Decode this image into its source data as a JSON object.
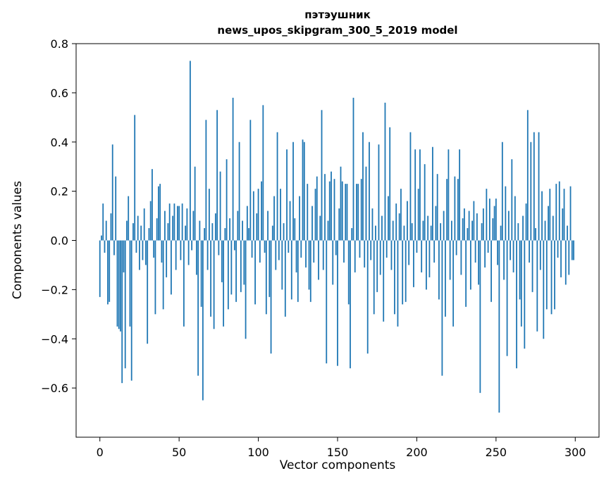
{
  "chart_data": {
    "type": "bar",
    "title_line1": "пэтэушник",
    "title_line2": "news_upos_skipgram_300_5_2019 model",
    "xlabel": "Vector components",
    "ylabel": "Components values",
    "xlim": [
      -15,
      315
    ],
    "ylim": [
      -0.8,
      0.8
    ],
    "bar_color": "#1f77b4",
    "grid": false,
    "legend": null,
    "xticks": [
      0,
      50,
      100,
      150,
      200,
      250,
      300
    ],
    "xticklabels": [
      "0",
      "50",
      "100",
      "150",
      "200",
      "250",
      "300"
    ],
    "yticks": [
      -0.6,
      -0.4,
      -0.2,
      0.0,
      0.2,
      0.4,
      0.6,
      0.8
    ],
    "yticklabels": [
      "−0.6",
      "−0.4",
      "−0.2",
      "0.0",
      "0.2",
      "0.4",
      "0.6",
      "0.8"
    ],
    "x_start": 0,
    "values": [
      -0.23,
      0.02,
      0.15,
      -0.05,
      0.08,
      -0.26,
      -0.25,
      0.11,
      0.39,
      -0.06,
      0.26,
      -0.35,
      -0.36,
      -0.37,
      -0.58,
      -0.13,
      -0.52,
      0.08,
      0.18,
      -0.35,
      -0.57,
      0.07,
      0.51,
      -0.05,
      0.1,
      -0.12,
      0.06,
      -0.08,
      0.13,
      -0.1,
      -0.42,
      0.05,
      0.16,
      0.29,
      -0.07,
      -0.3,
      0.09,
      0.22,
      0.23,
      -0.09,
      -0.28,
      0.12,
      -0.15,
      0.07,
      0.15,
      -0.22,
      0.1,
      0.15,
      -0.12,
      0.14,
      0.14,
      -0.08,
      0.15,
      -0.35,
      0.06,
      0.13,
      -0.1,
      0.73,
      -0.04,
      0.12,
      0.3,
      -0.14,
      -0.55,
      0.08,
      -0.27,
      -0.65,
      0.05,
      0.49,
      -0.12,
      0.21,
      -0.31,
      0.07,
      -0.36,
      0.11,
      0.53,
      -0.06,
      0.28,
      -0.17,
      -0.35,
      0.05,
      0.33,
      -0.28,
      0.09,
      -0.22,
      0.58,
      -0.04,
      -0.25,
      0.12,
      0.4,
      -0.21,
      0.08,
      -0.18,
      -0.4,
      0.14,
      0.05,
      0.49,
      -0.07,
      0.2,
      -0.26,
      0.11,
      0.21,
      -0.09,
      0.24,
      0.55,
      -0.05,
      -0.3,
      0.12,
      -0.23,
      -0.46,
      0.06,
      0.18,
      -0.12,
      0.44,
      -0.08,
      0.21,
      -0.2,
      0.07,
      -0.31,
      0.37,
      -0.05,
      0.16,
      -0.24,
      0.4,
      0.09,
      -0.13,
      -0.25,
      0.18,
      -0.07,
      0.41,
      0.4,
      -0.11,
      0.23,
      -0.2,
      -0.25,
      0.14,
      -0.09,
      0.21,
      0.26,
      -0.16,
      0.1,
      0.53,
      -0.12,
      0.27,
      -0.5,
      0.08,
      0.24,
      0.28,
      -0.18,
      0.25,
      -0.06,
      -0.51,
      0.13,
      0.3,
      0.24,
      -0.09,
      0.23,
      0.23,
      -0.26,
      -0.52,
      0.05,
      0.58,
      -0.13,
      0.23,
      0.23,
      -0.07,
      0.25,
      0.44,
      -0.11,
      0.3,
      -0.46,
      0.4,
      -0.08,
      0.13,
      -0.3,
      0.06,
      -0.21,
      0.39,
      -0.14,
      0.1,
      -0.33,
      0.56,
      -0.07,
      0.18,
      0.46,
      -0.12,
      0.08,
      -0.3,
      0.15,
      -0.35,
      0.11,
      0.21,
      -0.26,
      0.06,
      -0.25,
      0.16,
      -0.1,
      0.44,
      0.07,
      -0.19,
      0.37,
      -0.05,
      0.21,
      0.37,
      -0.13,
      0.08,
      0.31,
      -0.2,
      0.1,
      -0.15,
      0.06,
      0.38,
      -0.09,
      0.14,
      0.27,
      -0.24,
      0.07,
      -0.55,
      0.12,
      -0.31,
      0.25,
      0.37,
      -0.16,
      0.08,
      -0.35,
      0.26,
      -0.06,
      0.25,
      0.37,
      -0.14,
      0.09,
      0.13,
      -0.27,
      0.05,
      0.12,
      -0.2,
      0.08,
      0.16,
      -0.09,
      0.11,
      -0.18,
      -0.62,
      0.07,
      0.13,
      -0.11,
      0.21,
      -0.05,
      0.17,
      -0.25,
      0.09,
      0.14,
      0.17,
      -0.1,
      -0.7,
      0.06,
      0.4,
      -0.16,
      0.22,
      -0.47,
      0.12,
      -0.08,
      0.33,
      -0.13,
      0.18,
      -0.52,
      0.07,
      -0.24,
      -0.35,
      0.1,
      -0.44,
      0.15,
      0.53,
      -0.09,
      0.4,
      -0.21,
      0.44,
      0.05,
      -0.37,
      0.44,
      -0.12,
      0.2,
      -0.4,
      0.08,
      -0.28,
      0.14,
      0.21,
      -0.3,
      0.1,
      -0.28,
      0.23,
      -0.07,
      0.24,
      -0.15,
      0.13,
      0.21,
      -0.18,
      0.06,
      -0.14,
      0.22,
      -0.08,
      -0.08
    ]
  }
}
